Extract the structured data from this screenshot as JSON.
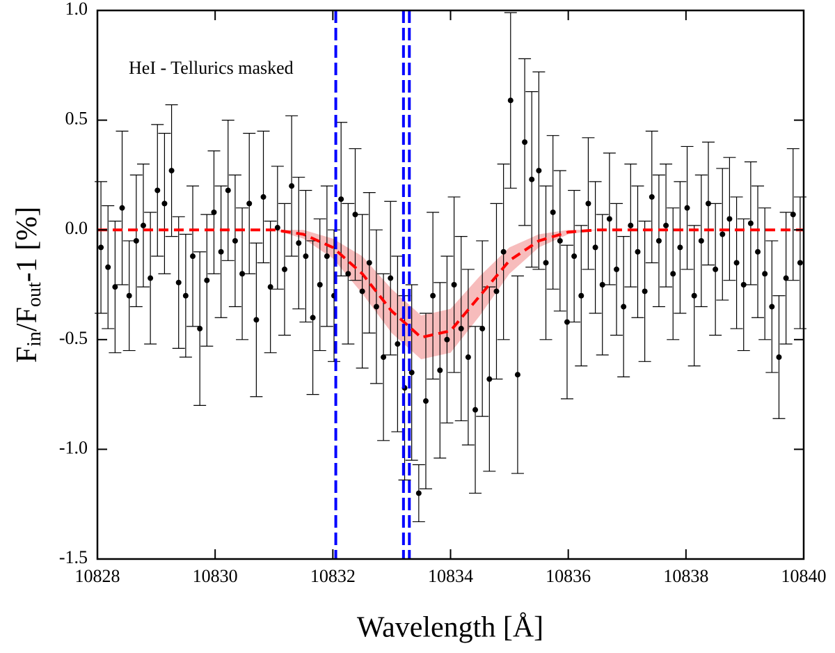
{
  "chart_data": {
    "type": "scatter",
    "annotation": "HeI - Tellurics masked",
    "xlabel": "Wavelength [Å]",
    "ylabel": {
      "main": "F",
      "sub1": "in",
      "mid": "/F",
      "sub2": "out",
      "end": "-1 [%]"
    },
    "xlim": [
      10828,
      10840
    ],
    "ylim": [
      -1.5,
      1.0
    ],
    "xticks": [
      10828,
      10830,
      10832,
      10834,
      10836,
      10838,
      10840
    ],
    "yticks": [
      {
        "value": 1.0,
        "label": "1.0"
      },
      0.5,
      {
        "value": 0.0,
        "label": "0.0"
      },
      -0.5,
      {
        "value": -1.0,
        "label": "-1.0"
      },
      -1.5
    ],
    "points": {
      "color": "#000000",
      "x": [
        10828.06,
        10828.18,
        10828.3,
        10828.42,
        10828.54,
        10828.66,
        10828.78,
        10828.9,
        10829.02,
        10829.14,
        10829.26,
        10829.38,
        10829.5,
        10829.62,
        10829.74,
        10829.86,
        10829.98,
        10830.1,
        10830.22,
        10830.34,
        10830.46,
        10830.58,
        10830.7,
        10830.82,
        10830.94,
        10831.06,
        10831.18,
        10831.3,
        10831.42,
        10831.54,
        10831.66,
        10831.78,
        10831.9,
        10832.02,
        10832.14,
        10832.26,
        10832.38,
        10832.5,
        10832.62,
        10832.74,
        10832.86,
        10832.98,
        10833.1,
        10833.22,
        10833.34,
        10833.46,
        10833.58,
        10833.7,
        10833.82,
        10833.94,
        10834.06,
        10834.18,
        10834.3,
        10834.42,
        10834.54,
        10834.66,
        10834.78,
        10834.9,
        10835.02,
        10835.14,
        10835.26,
        10835.38,
        10835.5,
        10835.62,
        10835.74,
        10835.86,
        10835.98,
        10836.1,
        10836.22,
        10836.34,
        10836.46,
        10836.58,
        10836.7,
        10836.82,
        10836.94,
        10837.06,
        10837.18,
        10837.3,
        10837.42,
        10837.54,
        10837.66,
        10837.78,
        10837.9,
        10838.02,
        10838.14,
        10838.26,
        10838.38,
        10838.5,
        10838.62,
        10838.74,
        10838.86,
        10838.98,
        10839.1,
        10839.22,
        10839.34,
        10839.46,
        10839.58,
        10839.7,
        10839.82,
        10839.94
      ],
      "values": [
        -0.08,
        -0.17,
        -0.26,
        0.1,
        -0.3,
        -0.05,
        0.02,
        -0.22,
        0.18,
        0.12,
        0.27,
        -0.24,
        -0.3,
        -0.12,
        -0.45,
        -0.23,
        0.08,
        -0.1,
        0.18,
        -0.05,
        -0.2,
        0.12,
        -0.41,
        0.15,
        -0.26,
        0.01,
        -0.18,
        0.2,
        -0.06,
        -0.12,
        -0.4,
        -0.25,
        -0.12,
        -0.3,
        0.14,
        -0.2,
        0.07,
        -0.28,
        -0.15,
        -0.35,
        -0.58,
        -0.22,
        -0.52,
        -0.72,
        -0.65,
        -1.2,
        -0.78,
        -0.3,
        -0.64,
        -0.5,
        -0.25,
        -0.45,
        -0.58,
        -0.82,
        -0.45,
        -0.68,
        -0.28,
        -0.1,
        0.59,
        -0.66,
        0.4,
        0.23,
        0.27,
        -0.15,
        0.08,
        -0.05,
        -0.42,
        -0.12,
        -0.3,
        0.12,
        -0.08,
        -0.25,
        0.05,
        -0.18,
        -0.35,
        0.02,
        -0.1,
        -0.28,
        0.15,
        -0.05,
        0.02,
        -0.2,
        -0.08,
        0.1,
        -0.3,
        -0.05,
        0.12,
        -0.18,
        -0.02,
        0.05,
        -0.15,
        -0.25,
        0.03,
        -0.1,
        -0.2,
        -0.35,
        -0.58,
        -0.22,
        0.07,
        -0.15
      ],
      "errors": [
        0.3,
        0.28,
        0.3,
        0.35,
        0.25,
        0.3,
        0.28,
        0.3,
        0.3,
        0.32,
        0.3,
        0.3,
        0.28,
        0.32,
        0.35,
        0.3,
        0.28,
        0.3,
        0.32,
        0.3,
        0.3,
        0.32,
        0.35,
        0.3,
        0.3,
        0.28,
        0.3,
        0.32,
        0.3,
        0.3,
        0.35,
        0.3,
        0.32,
        0.3,
        0.35,
        0.32,
        0.3,
        0.35,
        0.32,
        0.35,
        0.38,
        0.35,
        0.4,
        0.42,
        0.4,
        0.13,
        0.4,
        0.38,
        0.4,
        0.38,
        0.4,
        0.42,
        0.4,
        0.38,
        0.4,
        0.42,
        0.4,
        0.4,
        0.4,
        0.45,
        0.38,
        0.4,
        0.45,
        0.35,
        0.35,
        0.32,
        0.35,
        0.3,
        0.32,
        0.3,
        0.3,
        0.32,
        0.3,
        0.3,
        0.32,
        0.28,
        0.3,
        0.32,
        0.3,
        0.3,
        0.28,
        0.3,
        0.3,
        0.28,
        0.32,
        0.3,
        0.28,
        0.3,
        0.3,
        0.28,
        0.3,
        0.3,
        0.28,
        0.3,
        0.3,
        0.3,
        0.28,
        0.3,
        0.3,
        0.3
      ]
    },
    "model": {
      "color": "#ff0000",
      "band_color": "#f4a0a0",
      "x": [
        10828,
        10828.5,
        10829,
        10829.5,
        10830,
        10830.5,
        10831,
        10831.5,
        10832,
        10832.5,
        10833,
        10833.5,
        10834,
        10834.5,
        10835,
        10835.5,
        10836,
        10836.5,
        10837,
        10837.5,
        10838,
        10838.5,
        10839,
        10839.5,
        10840
      ],
      "values": [
        0,
        0,
        0,
        0,
        0,
        0,
        0,
        -0.02,
        -0.08,
        -0.2,
        -0.37,
        -0.49,
        -0.46,
        -0.3,
        -0.14,
        -0.05,
        -0.01,
        0,
        0,
        0,
        0,
        0,
        0,
        0,
        0
      ],
      "band_upper": [
        0,
        0,
        0,
        0,
        0,
        0,
        0,
        0,
        -0.04,
        -0.12,
        -0.27,
        -0.39,
        -0.36,
        -0.21,
        -0.08,
        -0.02,
        0,
        0,
        0,
        0,
        0,
        0,
        0,
        0,
        0
      ],
      "band_lower": [
        0,
        0,
        0,
        0,
        0,
        0,
        0,
        -0.04,
        -0.13,
        -0.29,
        -0.47,
        -0.59,
        -0.56,
        -0.39,
        -0.2,
        -0.08,
        -0.02,
        0,
        0,
        0,
        0,
        0,
        0,
        0,
        0
      ]
    },
    "vlines": {
      "color": "#0000ff",
      "x": [
        10832.05,
        10833.2,
        10833.3
      ]
    }
  }
}
